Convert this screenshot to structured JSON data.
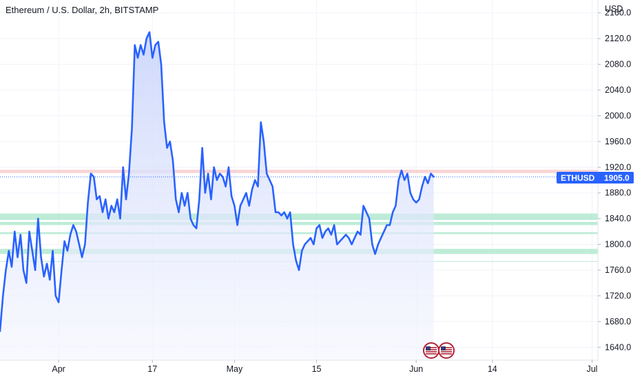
{
  "header": {
    "title": "Ethereum / U.S. Dollar, 2h, BITSTAMP",
    "currency": "USD"
  },
  "price_tag": {
    "symbol": "ETHUSD",
    "value": "1905.0",
    "color": "#2962ff"
  },
  "colors": {
    "line": "#2962ff",
    "area_top": "#c9d4fb",
    "area_bottom": "#f4f6fe",
    "resistance_zone": "#f7c6c6",
    "support_zone": "#a8e6c9",
    "grid": "#f0f3fa"
  },
  "logo": "tradingview-flag-logo",
  "chart_data": {
    "type": "area",
    "title": "Ethereum / U.S. Dollar, 2h, BITSTAMP",
    "xlabel": "",
    "ylabel": "USD",
    "ylim": [
      1620,
      2180
    ],
    "xlim": [
      "2023-03-22",
      "2023-07-02"
    ],
    "y_ticks": [
      "2160.0",
      "2120.0",
      "2080.0",
      "2040.0",
      "2000.0",
      "1960.0",
      "1920.0",
      "1880.0",
      "1840.0",
      "1800.0",
      "1760.0",
      "1720.0",
      "1680.0",
      "1640.0"
    ],
    "x_ticks": [
      {
        "label": "Apr",
        "date": "2023-04-01"
      },
      {
        "label": "17",
        "date": "2023-04-17"
      },
      {
        "label": "May",
        "date": "2023-05-01"
      },
      {
        "label": "15",
        "date": "2023-05-15"
      },
      {
        "label": "Jun",
        "date": "2023-06-01"
      },
      {
        "label": "14",
        "date": "2023-06-14"
      },
      {
        "label": "Jul",
        "date": "2023-07-01"
      }
    ],
    "grid": true,
    "horizontal_zones": [
      {
        "kind": "resistance",
        "from": 1911,
        "to": 1916
      },
      {
        "kind": "support",
        "from": 1838,
        "to": 1848
      },
      {
        "kind": "support",
        "from": 1830,
        "to": 1835
      },
      {
        "kind": "support",
        "from": 1816,
        "to": 1819
      },
      {
        "kind": "support",
        "from": 1785,
        "to": 1793
      },
      {
        "kind": "support",
        "from": 1773,
        "to": 1774
      }
    ],
    "last_price_line": 1905,
    "series": [
      {
        "points": [
          [
            "2023-03-22",
            1665
          ],
          [
            "2023-03-22T12:00",
            1720
          ],
          [
            "2023-03-23",
            1760
          ],
          [
            "2023-03-23T12:00",
            1790
          ],
          [
            "2023-03-24",
            1765
          ],
          [
            "2023-03-24T12:00",
            1820
          ],
          [
            "2023-03-25",
            1780
          ],
          [
            "2023-03-25T12:00",
            1815
          ],
          [
            "2023-03-26",
            1760
          ],
          [
            "2023-03-26T12:00",
            1740
          ],
          [
            "2023-03-27",
            1820
          ],
          [
            "2023-03-27T12:00",
            1790
          ],
          [
            "2023-03-28",
            1760
          ],
          [
            "2023-03-28T12:00",
            1840
          ],
          [
            "2023-03-29",
            1780
          ],
          [
            "2023-03-29T12:00",
            1750
          ],
          [
            "2023-03-30",
            1770
          ],
          [
            "2023-03-30T12:00",
            1745
          ],
          [
            "2023-03-31",
            1790
          ],
          [
            "2023-03-31T12:00",
            1720
          ],
          [
            "2023-04-01",
            1710
          ],
          [
            "2023-04-01T12:00",
            1760
          ],
          [
            "2023-04-02",
            1805
          ],
          [
            "2023-04-02T12:00",
            1790
          ],
          [
            "2023-04-03",
            1815
          ],
          [
            "2023-04-03T12:00",
            1830
          ],
          [
            "2023-04-04",
            1820
          ],
          [
            "2023-04-04T12:00",
            1800
          ],
          [
            "2023-04-05",
            1780
          ],
          [
            "2023-04-05T12:00",
            1800
          ],
          [
            "2023-04-06",
            1865
          ],
          [
            "2023-04-06T12:00",
            1910
          ],
          [
            "2023-04-07",
            1905
          ],
          [
            "2023-04-07T12:00",
            1870
          ],
          [
            "2023-04-08",
            1875
          ],
          [
            "2023-04-08T12:00",
            1850
          ],
          [
            "2023-04-09",
            1870
          ],
          [
            "2023-04-09T12:00",
            1840
          ],
          [
            "2023-04-10",
            1860
          ],
          [
            "2023-04-10T12:00",
            1850
          ],
          [
            "2023-04-11",
            1870
          ],
          [
            "2023-04-11T12:00",
            1840
          ],
          [
            "2023-04-12",
            1920
          ],
          [
            "2023-04-12T12:00",
            1870
          ],
          [
            "2023-04-13",
            1910
          ],
          [
            "2023-04-13T12:00",
            1980
          ],
          [
            "2023-04-14",
            2110
          ],
          [
            "2023-04-14T12:00",
            2090
          ],
          [
            "2023-04-15",
            2110
          ],
          [
            "2023-04-15T12:00",
            2095
          ],
          [
            "2023-04-16",
            2120
          ],
          [
            "2023-04-16T12:00",
            2130
          ],
          [
            "2023-04-17",
            2090
          ],
          [
            "2023-04-17T12:00",
            2110
          ],
          [
            "2023-04-18",
            2115
          ],
          [
            "2023-04-18T12:00",
            2080
          ],
          [
            "2023-04-19",
            1990
          ],
          [
            "2023-04-19T12:00",
            1950
          ],
          [
            "2023-04-20",
            1960
          ],
          [
            "2023-04-20T12:00",
            1930
          ],
          [
            "2023-04-21",
            1870
          ],
          [
            "2023-04-21T12:00",
            1850
          ],
          [
            "2023-04-22",
            1880
          ],
          [
            "2023-04-22T12:00",
            1860
          ],
          [
            "2023-04-23",
            1880
          ],
          [
            "2023-04-23T12:00",
            1840
          ],
          [
            "2023-04-24",
            1830
          ],
          [
            "2023-04-24T12:00",
            1825
          ],
          [
            "2023-04-25",
            1870
          ],
          [
            "2023-04-25T12:00",
            1950
          ],
          [
            "2023-04-26",
            1880
          ],
          [
            "2023-04-26T12:00",
            1910
          ],
          [
            "2023-04-27",
            1870
          ],
          [
            "2023-04-27T12:00",
            1920
          ],
          [
            "2023-04-28",
            1900
          ],
          [
            "2023-04-28T12:00",
            1910
          ],
          [
            "2023-04-29",
            1905
          ],
          [
            "2023-04-29T12:00",
            1890
          ],
          [
            "2023-04-30",
            1920
          ],
          [
            "2023-04-30T12:00",
            1875
          ],
          [
            "2023-05-01",
            1860
          ],
          [
            "2023-05-01T12:00",
            1830
          ],
          [
            "2023-05-02",
            1860
          ],
          [
            "2023-05-02T12:00",
            1870
          ],
          [
            "2023-05-03",
            1880
          ],
          [
            "2023-05-03T12:00",
            1860
          ],
          [
            "2023-05-04",
            1885
          ],
          [
            "2023-05-04T12:00",
            1900
          ],
          [
            "2023-05-05",
            1890
          ],
          [
            "2023-05-05T12:00",
            1990
          ],
          [
            "2023-05-06",
            1960
          ],
          [
            "2023-05-06T12:00",
            1910
          ],
          [
            "2023-05-07",
            1900
          ],
          [
            "2023-05-07T12:00",
            1890
          ],
          [
            "2023-05-08",
            1850
          ],
          [
            "2023-05-08T12:00",
            1850
          ],
          [
            "2023-05-09",
            1845
          ],
          [
            "2023-05-09T12:00",
            1850
          ],
          [
            "2023-05-10",
            1840
          ],
          [
            "2023-05-10T12:00",
            1850
          ],
          [
            "2023-05-11",
            1800
          ],
          [
            "2023-05-11T12:00",
            1775
          ],
          [
            "2023-05-12",
            1760
          ],
          [
            "2023-05-12T12:00",
            1790
          ],
          [
            "2023-05-13",
            1800
          ],
          [
            "2023-05-13T12:00",
            1805
          ],
          [
            "2023-05-14",
            1810
          ],
          [
            "2023-05-14T12:00",
            1800
          ],
          [
            "2023-05-15",
            1825
          ],
          [
            "2023-05-15T12:00",
            1830
          ],
          [
            "2023-05-16",
            1810
          ],
          [
            "2023-05-16T12:00",
            1820
          ],
          [
            "2023-05-17",
            1825
          ],
          [
            "2023-05-17T12:00",
            1815
          ],
          [
            "2023-05-18",
            1830
          ],
          [
            "2023-05-18T12:00",
            1800
          ],
          [
            "2023-05-19",
            1805
          ],
          [
            "2023-05-19T12:00",
            1810
          ],
          [
            "2023-05-20",
            1815
          ],
          [
            "2023-05-20T12:00",
            1810
          ],
          [
            "2023-05-21",
            1800
          ],
          [
            "2023-05-21T12:00",
            1810
          ],
          [
            "2023-05-22",
            1820
          ],
          [
            "2023-05-22T12:00",
            1815
          ],
          [
            "2023-05-23",
            1860
          ],
          [
            "2023-05-23T12:00",
            1850
          ],
          [
            "2023-05-24",
            1840
          ],
          [
            "2023-05-24T12:00",
            1800
          ],
          [
            "2023-05-25",
            1785
          ],
          [
            "2023-05-25T12:00",
            1800
          ],
          [
            "2023-05-26",
            1810
          ],
          [
            "2023-05-26T12:00",
            1820
          ],
          [
            "2023-05-27",
            1830
          ],
          [
            "2023-05-27T12:00",
            1830
          ],
          [
            "2023-05-28",
            1850
          ],
          [
            "2023-05-28T12:00",
            1860
          ],
          [
            "2023-05-29",
            1900
          ],
          [
            "2023-05-29T12:00",
            1915
          ],
          [
            "2023-05-30",
            1900
          ],
          [
            "2023-05-30T12:00",
            1910
          ],
          [
            "2023-05-31",
            1880
          ],
          [
            "2023-05-31T12:00",
            1870
          ],
          [
            "2023-06-01",
            1865
          ],
          [
            "2023-06-01T12:00",
            1870
          ],
          [
            "2023-06-02",
            1890
          ],
          [
            "2023-06-02T12:00",
            1905
          ],
          [
            "2023-06-03",
            1895
          ],
          [
            "2023-06-03T12:00",
            1910
          ],
          [
            "2023-06-04",
            1905
          ]
        ]
      }
    ]
  }
}
